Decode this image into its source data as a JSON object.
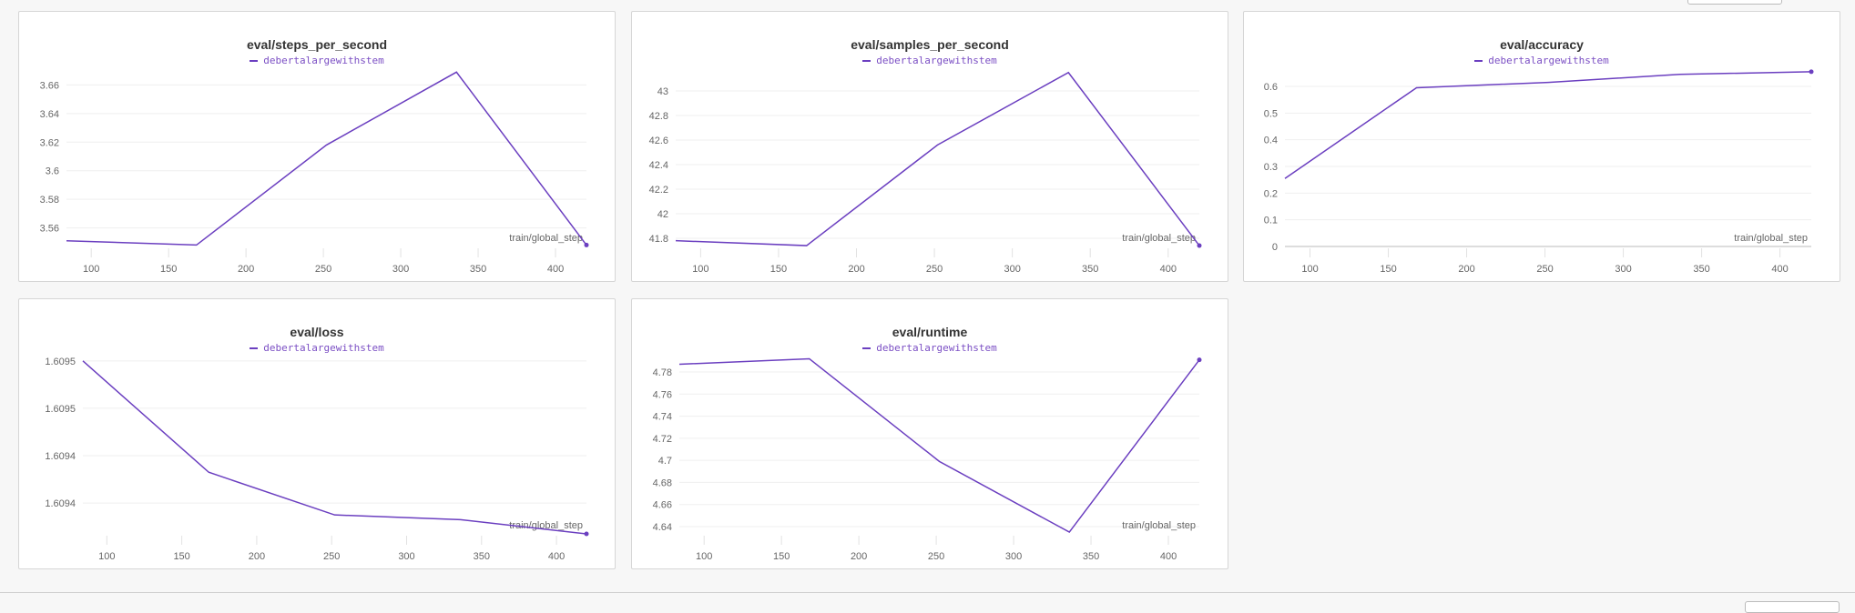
{
  "colors": {
    "series": "#6b3fc0",
    "grid": "#efefef",
    "text": "#666666"
  },
  "chart_data": [
    {
      "type": "line",
      "title": "eval/steps_per_second",
      "xlabel": "train/global_step",
      "ylabel": "",
      "x": [
        84,
        168,
        252,
        336,
        420
      ],
      "xlim": [
        84,
        420
      ],
      "xticks": [
        100,
        150,
        200,
        250,
        300,
        350,
        400
      ],
      "ylim": [
        3.547,
        3.673
      ],
      "yticks": [
        3.56,
        3.58,
        3.6,
        3.62,
        3.64,
        3.66
      ],
      "ytick_labels": [
        "3.56",
        "3.58",
        "3.6",
        "3.62",
        "3.64",
        "3.66"
      ],
      "grid": true,
      "legend": "top-center",
      "series": [
        {
          "name": "debertalargewithstem",
          "values": [
            3.551,
            3.548,
            3.618,
            3.669,
            3.548
          ]
        }
      ]
    },
    {
      "type": "line",
      "title": "eval/samples_per_second",
      "xlabel": "train/global_step",
      "ylabel": "",
      "x": [
        84,
        168,
        252,
        336,
        420
      ],
      "xlim": [
        84,
        420
      ],
      "xticks": [
        100,
        150,
        200,
        250,
        300,
        350,
        400
      ],
      "ylim": [
        41.733,
        43.2
      ],
      "yticks": [
        41.8,
        42,
        42.2,
        42.4,
        42.6,
        42.8,
        43
      ],
      "ytick_labels": [
        "41.8",
        "42",
        "42.2",
        "42.4",
        "42.6",
        "42.8",
        "43"
      ],
      "grid": true,
      "legend": "top-center",
      "series": [
        {
          "name": "debertalargewithstem",
          "values": [
            41.78,
            41.74,
            42.56,
            43.15,
            41.74
          ]
        }
      ]
    },
    {
      "type": "line",
      "title": "eval/accuracy",
      "xlabel": "train/global_step",
      "ylabel": "",
      "x": [
        84,
        168,
        252,
        336,
        420
      ],
      "xlim": [
        84,
        420
      ],
      "xticks": [
        100,
        150,
        200,
        250,
        300,
        350,
        400
      ],
      "ylim": [
        0,
        0.675
      ],
      "yticks": [
        0,
        0.1,
        0.2,
        0.3,
        0.4,
        0.5,
        0.6
      ],
      "ytick_labels": [
        "0",
        "0.1",
        "0.2",
        "0.3",
        "0.4",
        "0.5",
        "0.6"
      ],
      "grid": true,
      "legend": "top-center",
      "series": [
        {
          "name": "debertalargewithstem",
          "values": [
            0.255,
            0.595,
            0.615,
            0.645,
            0.655
          ]
        }
      ]
    },
    {
      "type": "line",
      "title": "eval/loss",
      "xlabel": "train/global_step",
      "ylabel": "",
      "x": [
        84,
        168,
        252,
        336,
        420
      ],
      "xlim": [
        84,
        420
      ],
      "xticks": [
        100,
        150,
        200,
        250,
        300,
        350,
        400
      ],
      "ylim": [
        1.609407,
        1.609483
      ],
      "yticks": [
        1.60942,
        1.60944,
        1.60946,
        1.60948
      ],
      "ytick_labels": [
        "1.6094",
        "1.6094",
        "1.6095",
        "1.6095"
      ],
      "grid": true,
      "legend": "top-center",
      "series": [
        {
          "name": "debertalargewithstem",
          "values": [
            1.60948,
            1.609433,
            1.609415,
            1.609413,
            1.609407
          ]
        }
      ]
    },
    {
      "type": "line",
      "title": "eval/runtime",
      "xlabel": "train/global_step",
      "ylabel": "",
      "x": [
        84,
        168,
        252,
        336,
        420
      ],
      "xlim": [
        84,
        420
      ],
      "xticks": [
        100,
        150,
        200,
        250,
        300,
        350,
        400
      ],
      "ylim": [
        4.6334,
        4.7965
      ],
      "yticks": [
        4.64,
        4.66,
        4.68,
        4.7,
        4.72,
        4.74,
        4.76,
        4.78
      ],
      "ytick_labels": [
        "4.64",
        "4.66",
        "4.68",
        "4.7",
        "4.72",
        "4.74",
        "4.76",
        "4.78"
      ],
      "grid": true,
      "legend": "top-center",
      "series": [
        {
          "name": "debertalargewithstem",
          "values": [
            4.787,
            4.792,
            4.699,
            4.635,
            4.791
          ]
        }
      ]
    }
  ]
}
